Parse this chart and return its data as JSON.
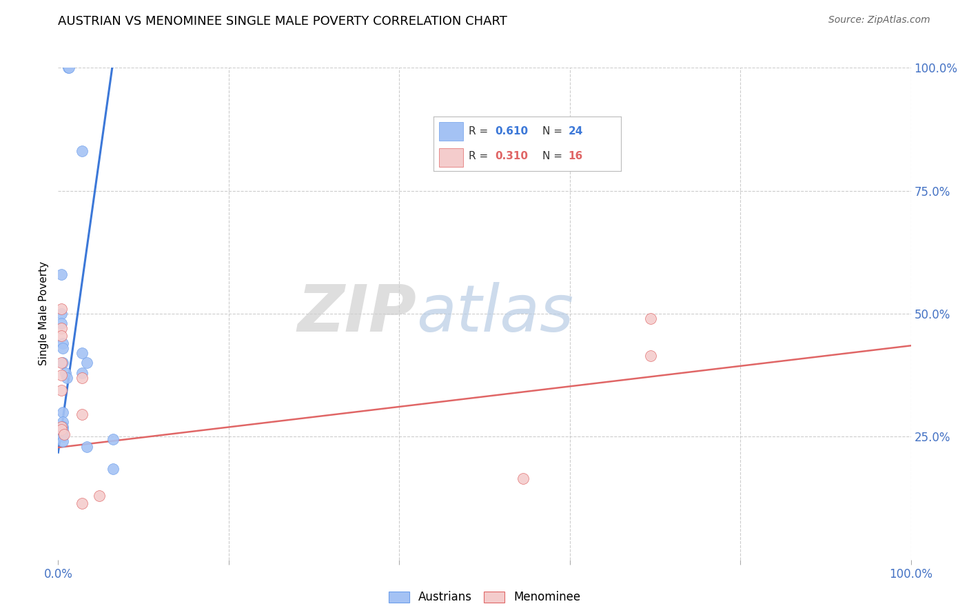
{
  "title": "AUSTRIAN VS MENOMINEE SINGLE MALE POVERTY CORRELATION CHART",
  "source": "Source: ZipAtlas.com",
  "ylabel": "Single Male Poverty",
  "watermark_zip": "ZIP",
  "watermark_atlas": "atlas",
  "xlim": [
    0,
    1
  ],
  "ylim": [
    0,
    1
  ],
  "blue_color": "#a4c2f4",
  "pink_color": "#f4cccc",
  "blue_edge_color": "#6d9eeb",
  "pink_edge_color": "#e06666",
  "blue_line_color": "#3c78d8",
  "pink_line_color": "#e06666",
  "tick_color": "#4472c4",
  "grid_color": "#cccccc",
  "background_color": "#ffffff",
  "legend_blue_r": "0.610",
  "legend_blue_n": "24",
  "legend_pink_r": "0.310",
  "legend_pink_n": "16",
  "austrians_x": [
    0.012,
    0.013,
    0.028,
    0.004,
    0.004,
    0.004,
    0.005,
    0.005,
    0.005,
    0.009,
    0.01,
    0.005,
    0.005,
    0.005,
    0.005,
    0.005,
    0.005,
    0.005,
    0.028,
    0.028,
    0.034,
    0.034,
    0.064,
    0.064
  ],
  "austrians_y": [
    1.0,
    1.0,
    0.83,
    0.58,
    0.5,
    0.48,
    0.44,
    0.43,
    0.4,
    0.38,
    0.37,
    0.3,
    0.28,
    0.27,
    0.265,
    0.255,
    0.25,
    0.24,
    0.42,
    0.38,
    0.23,
    0.4,
    0.185,
    0.245
  ],
  "menominee_x": [
    0.004,
    0.004,
    0.004,
    0.004,
    0.004,
    0.004,
    0.004,
    0.004,
    0.007,
    0.028,
    0.028,
    0.028,
    0.048,
    0.695,
    0.695,
    0.545
  ],
  "menominee_y": [
    0.51,
    0.47,
    0.455,
    0.4,
    0.375,
    0.345,
    0.27,
    0.265,
    0.255,
    0.37,
    0.295,
    0.115,
    0.13,
    0.49,
    0.415,
    0.165
  ],
  "blue_trend_x": [
    0.0,
    0.065
  ],
  "blue_trend_y": [
    0.218,
    1.02
  ],
  "pink_trend_x": [
    0.0,
    1.0
  ],
  "pink_trend_y": [
    0.228,
    0.435
  ],
  "marker_size": 130
}
